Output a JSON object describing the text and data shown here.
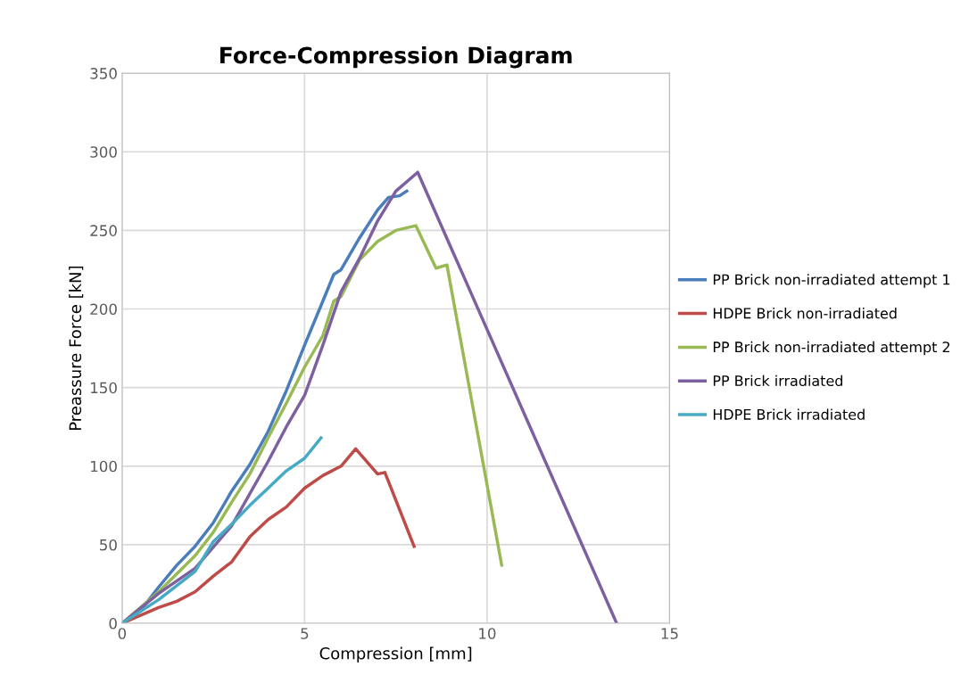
{
  "chart_data": {
    "type": "line",
    "title": "Force-Compression Diagram",
    "xlabel": "Compression [mm]",
    "ylabel": "Preassure Force [kN]",
    "xlim": [
      0,
      15
    ],
    "xticks": [
      0,
      5,
      10,
      15
    ],
    "ylim": [
      0,
      350
    ],
    "yticks": [
      0,
      50,
      100,
      150,
      200,
      250,
      300,
      350
    ],
    "grid": true,
    "legend": "right",
    "marker": "none",
    "line_style": "solid",
    "series": [
      {
        "name": "PP Brick non-irradiated attempt 1",
        "color": "#4a7ebb",
        "x": [
          0,
          0.5,
          1,
          1.5,
          2,
          2.5,
          3,
          3.5,
          4,
          4.5,
          5,
          5.5,
          5.8,
          6,
          6.5,
          7,
          7.3,
          7.6,
          7.8
        ],
        "values": [
          0,
          8,
          23,
          37,
          49,
          64,
          84,
          101,
          122,
          148,
          177,
          205,
          222,
          225,
          245,
          263,
          271,
          272,
          275
        ]
      },
      {
        "name": "HDPE Brick non-irradiated",
        "color": "#be4b48",
        "x": [
          0,
          1,
          1.5,
          2,
          2.5,
          3,
          3.5,
          4,
          4.5,
          5,
          5.5,
          6,
          6.4,
          7.0,
          7.2,
          8.0
        ],
        "values": [
          0,
          10,
          14,
          20,
          30,
          39,
          55,
          66,
          74,
          86,
          94,
          100,
          111,
          95,
          96,
          49
        ]
      },
      {
        "name": "PP Brick non-irradiated attempt 2",
        "color": "#98b954",
        "x": [
          0,
          1,
          2,
          2.5,
          3,
          3.5,
          4,
          4.5,
          5,
          5.5,
          5.8,
          6,
          6.5,
          7,
          7.5,
          8.05,
          8.6,
          8.9,
          10.4
        ],
        "values": [
          0,
          20,
          43,
          58,
          77,
          95,
          118,
          140,
          163,
          183,
          205,
          208,
          231,
          243,
          250,
          253,
          226,
          228,
          37
        ]
      },
      {
        "name": "PP Brick irradiated",
        "color": "#7d60a0",
        "x": [
          0,
          1,
          2,
          3,
          4,
          4.5,
          5,
          5.5,
          6,
          6.5,
          7,
          7.5,
          8.1,
          13.55
        ],
        "values": [
          0,
          19,
          35,
          62,
          103,
          125,
          145,
          177,
          211,
          232,
          256,
          275,
          287,
          0
        ]
      },
      {
        "name": "HDPE Brick irradiated",
        "color": "#46aac5",
        "x": [
          0,
          1,
          2,
          2.5,
          3,
          3.5,
          4,
          4.5,
          5,
          5.45
        ],
        "values": [
          0,
          15,
          33,
          52,
          63,
          75,
          86,
          97,
          105,
          118
        ]
      }
    ]
  }
}
